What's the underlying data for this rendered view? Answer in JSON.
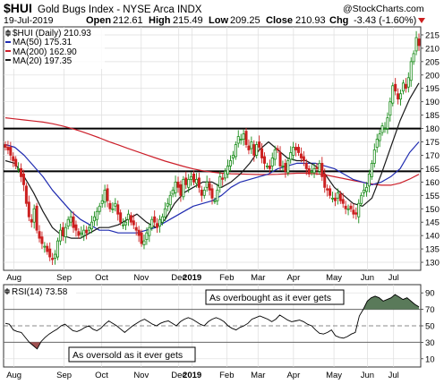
{
  "header": {
    "title": "$HUI",
    "subtitle": "Gold Bugs Index - NYSE Arca INDX",
    "watermark": "@StockCharts.com",
    "date": "19-Jul-2019",
    "open_label": "Open",
    "open": "212.61",
    "high_label": "High",
    "high": "215.49",
    "low_label": "Low",
    "low": "209.25",
    "close_label": "Close",
    "close": "210.93",
    "chg_label": "Chg",
    "chg": "-3.43 (-1.60%)",
    "chg_icon": "down-triangle"
  },
  "legend": [
    {
      "label": "$HUI (Daily) 210.93",
      "color": "#000000",
      "icon": "candlestick-icon"
    },
    {
      "label": "MA(50) 175.31",
      "color": "#1f2bb0"
    },
    {
      "label": "MA(200) 162.90",
      "color": "#cc1f2a"
    },
    {
      "label": "MA(20) 197.35",
      "color": "#1a1a1a"
    }
  ],
  "rsi_panel": {
    "label": "RSI(14) 73.58",
    "levels": [
      "90",
      "70",
      "50",
      "30",
      "10"
    ],
    "annotation_overbought": "As overbought as it ever gets",
    "annotation_oversold": "As oversold as it ever gets"
  },
  "colors": {
    "up": "#1a8c1a",
    "down": "#cc2020",
    "ma50": "#1f2bb0",
    "ma200": "#cc1f2a",
    "ma20": "#1a1a1a",
    "rsi_fill": "#5a7a5a"
  },
  "chart_data": {
    "type": "line",
    "ylim": [
      127,
      218
    ],
    "yticks": [
      "130",
      "135",
      "140",
      "145",
      "150",
      "155",
      "160",
      "165",
      "170",
      "175",
      "180",
      "185",
      "190",
      "195",
      "200",
      "205",
      "210",
      "215"
    ],
    "months": [
      "Aug",
      "Sep",
      "Oct",
      "Nov",
      "Dec",
      "2019",
      "Feb",
      "Mar",
      "Apr",
      "May",
      "Jun",
      "Jul"
    ],
    "horizontal_lines": [
      180,
      164
    ],
    "series": [
      {
        "name": "$HUI (Daily)",
        "type": "candlestick",
        "values": [
          173,
          172,
          170,
          168,
          166,
          165,
          162,
          159,
          152,
          147,
          145,
          150,
          142,
          139,
          137,
          136,
          134,
          132,
          131,
          133,
          138,
          142,
          140,
          143,
          146,
          147,
          143,
          142,
          140,
          141,
          142,
          141,
          143,
          145,
          147,
          149,
          151,
          153,
          157,
          153,
          150,
          150,
          152,
          148,
          145,
          144,
          145,
          148,
          145,
          144,
          142,
          140,
          137,
          138,
          141,
          143,
          146,
          145,
          143,
          146,
          147,
          150,
          152,
          155,
          157,
          160,
          158,
          155,
          161,
          159,
          161,
          162,
          160,
          161,
          158,
          155,
          157,
          160,
          157,
          154,
          153,
          157,
          162,
          161,
          164,
          166,
          168,
          170,
          174,
          177,
          176,
          178,
          174,
          172,
          175,
          170,
          174,
          173,
          169,
          167,
          166,
          165,
          169,
          172,
          172,
          166,
          166,
          164,
          168,
          171,
          173,
          172,
          171,
          169,
          168,
          165,
          163,
          164,
          165,
          165,
          167,
          162,
          158,
          157,
          155,
          154,
          153,
          156,
          153,
          152,
          150,
          150,
          150,
          148,
          148,
          152,
          155,
          157,
          158,
          163,
          167,
          172,
          176,
          178,
          181,
          180,
          184,
          190,
          196,
          194,
          191,
          193,
          197,
          195,
          199,
          205,
          208,
          214,
          211
        ]
      },
      {
        "name": "MA(50)",
        "values": [
          174,
          173,
          170,
          166,
          162,
          157,
          153,
          149,
          146,
          144,
          142,
          142,
          141,
          141,
          141,
          142,
          143,
          145,
          147,
          149,
          151,
          152,
          153,
          155,
          158,
          160,
          161,
          162,
          163,
          165,
          166,
          167,
          167,
          167,
          166,
          165,
          163,
          161,
          160,
          159,
          160,
          162,
          165,
          171,
          175
        ]
      },
      {
        "name": "MA(200)",
        "values": [
          184,
          183.6,
          183.2,
          182.8,
          182.4,
          181.8,
          181.0,
          180.1,
          179.0,
          177.8,
          176.5,
          175.1,
          173.9,
          172.6,
          171.4,
          170.2,
          169.0,
          167.8,
          166.8,
          165.8,
          164.9,
          164.2,
          163.7,
          163.3,
          163.1,
          163.0,
          162.9,
          162.8,
          162.8,
          162.9,
          163.1,
          163.3,
          163.3,
          163.1,
          162.7,
          162.0,
          161.3,
          160.6,
          159.9,
          159.3,
          158.8,
          158.8,
          159.6,
          161.1,
          162.9
        ]
      },
      {
        "name": "MA(20)",
        "values": [
          168,
          167,
          162,
          156,
          149,
          143,
          140,
          139,
          139,
          141,
          143,
          143,
          144,
          146,
          148,
          145,
          143,
          146,
          152,
          156,
          158,
          160,
          160,
          158,
          160,
          163,
          167,
          172,
          175,
          172,
          169,
          168,
          168,
          166,
          163,
          158,
          155,
          152,
          151,
          154,
          163,
          173,
          183,
          191,
          197
        ]
      },
      {
        "name": "RSI(14)",
        "values": [
          53,
          52,
          45,
          43,
          42,
          36,
          30,
          26,
          22,
          31,
          36,
          40,
          43,
          46,
          50,
          52,
          48,
          44,
          43,
          45,
          48,
          50,
          46,
          44,
          47,
          52,
          56,
          53,
          50,
          46,
          42,
          46,
          50,
          53,
          56,
          58,
          55,
          52,
          50,
          53,
          55,
          56,
          53,
          50,
          55,
          58,
          60,
          58,
          55,
          52,
          50,
          55,
          58,
          60,
          58,
          55,
          50,
          47,
          45,
          48,
          50,
          53,
          58,
          60,
          62,
          60,
          58,
          55,
          58,
          63,
          60,
          57,
          55,
          56,
          57,
          55,
          52,
          50,
          45,
          41,
          40,
          42,
          45,
          38,
          36,
          35,
          37,
          40,
          42,
          62,
          70,
          80,
          84,
          86,
          84,
          80,
          82,
          84,
          88,
          85,
          82,
          84,
          80,
          76,
          73
        ]
      }
    ]
  }
}
